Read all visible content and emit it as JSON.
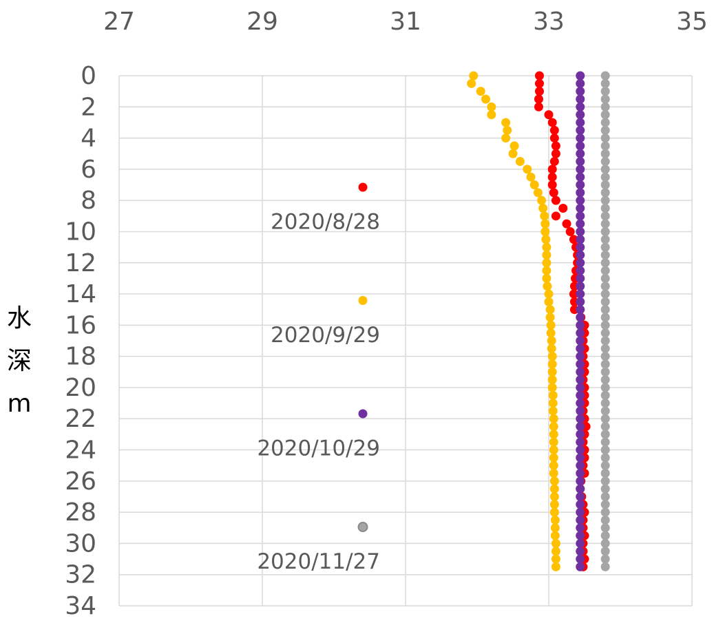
{
  "chart_data": {
    "type": "scatter",
    "y_label": "水深m",
    "xlim": [
      27,
      35
    ],
    "xticks": [
      27,
      29,
      31,
      33,
      35
    ],
    "ylim": [
      0,
      34
    ],
    "yticks": [
      0,
      2,
      4,
      6,
      8,
      10,
      12,
      14,
      16,
      18,
      20,
      22,
      24,
      26,
      28,
      30,
      32,
      34
    ],
    "y_inverted": true,
    "x_axis_position": "top",
    "grid": true,
    "series": [
      {
        "name": "2020/8/28",
        "color": "#ff0000",
        "x": [
          32.87,
          32.87,
          32.87,
          32.86,
          32.86,
          33.0,
          33.05,
          33.08,
          33.08,
          33.1,
          33.1,
          33.08,
          33.05,
          33.05,
          33.05,
          33.07,
          33.1,
          33.2,
          33.1,
          33.25,
          33.3,
          33.35,
          33.38,
          33.4,
          33.4,
          33.38,
          33.37,
          33.36,
          33.35,
          33.36,
          33.36,
          33.45,
          33.5,
          33.5,
          33.48,
          33.5,
          33.48,
          33.5,
          33.5,
          33.48,
          33.5,
          33.5,
          33.5,
          33.48,
          33.5,
          33.52,
          33.5,
          33.48,
          33.5,
          33.5,
          33.48,
          33.5,
          33.45,
          33.44,
          33.46,
          33.48,
          33.5,
          33.48,
          33.48,
          33.5,
          33.48,
          33.48,
          33.5,
          33.48
        ],
        "values": [
          0,
          0.5,
          1,
          1.5,
          2,
          2.5,
          3,
          3.5,
          4,
          4.5,
          5,
          5.5,
          6,
          6.5,
          7,
          7.5,
          8,
          8.5,
          9,
          9.5,
          10,
          10.5,
          11,
          11.5,
          12,
          12.5,
          13,
          13.5,
          14,
          14.5,
          15,
          15.5,
          16,
          16.5,
          17,
          17.5,
          18,
          18.5,
          19,
          19.5,
          20,
          20.5,
          21,
          21.5,
          22,
          22.5,
          23,
          23.5,
          24,
          24.5,
          25,
          25.5,
          26,
          26.5,
          27,
          27.5,
          28,
          28.5,
          29,
          29.5,
          30,
          30.5,
          31,
          31.5
        ]
      },
      {
        "name": "2020/9/29",
        "color": "#ffc000",
        "x": [
          31.95,
          31.92,
          32.05,
          32.12,
          32.2,
          32.2,
          32.4,
          32.42,
          32.4,
          32.52,
          32.5,
          32.6,
          32.7,
          32.75,
          32.8,
          32.85,
          32.9,
          32.92,
          32.94,
          32.95,
          32.95,
          32.96,
          32.97,
          32.97,
          32.97,
          32.97,
          32.97,
          32.98,
          33.0,
          33.0,
          33.02,
          33.02,
          33.03,
          33.03,
          33.04,
          33.04,
          33.05,
          33.05,
          33.05,
          33.05,
          33.05,
          33.06,
          33.06,
          33.06,
          33.07,
          33.07,
          33.07,
          33.07,
          33.07,
          33.07,
          33.07,
          33.07,
          33.08,
          33.08,
          33.08,
          33.08,
          33.08,
          33.09,
          33.09,
          33.09,
          33.1,
          33.1,
          33.1,
          33.1
        ],
        "values": [
          0,
          0.5,
          1,
          1.5,
          2,
          2.5,
          3,
          3.5,
          4,
          4.5,
          5,
          5.5,
          6,
          6.5,
          7,
          7.5,
          8,
          8.5,
          9,
          9.5,
          10,
          10.5,
          11,
          11.5,
          12,
          12.5,
          13,
          13.5,
          14,
          14.5,
          15,
          15.5,
          16,
          16.5,
          17,
          17.5,
          18,
          18.5,
          19,
          19.5,
          20,
          20.5,
          21,
          21.5,
          22,
          22.5,
          23,
          23.5,
          24,
          24.5,
          25,
          25.5,
          26,
          26.5,
          27,
          27.5,
          28,
          28.5,
          29,
          29.5,
          30,
          30.5,
          31,
          31.5
        ]
      },
      {
        "name": "2020/10/29",
        "color": "#7030a0",
        "x": [
          33.44,
          33.44,
          33.44,
          33.44,
          33.44,
          33.44,
          33.44,
          33.44,
          33.44,
          33.44,
          33.44,
          33.44,
          33.44,
          33.44,
          33.44,
          33.44,
          33.44,
          33.44,
          33.44,
          33.44,
          33.44,
          33.44,
          33.44,
          33.44,
          33.44,
          33.44,
          33.44,
          33.44,
          33.44,
          33.44,
          33.44,
          33.44,
          33.44,
          33.44,
          33.44,
          33.44,
          33.44,
          33.44,
          33.44,
          33.44,
          33.44,
          33.44,
          33.44,
          33.44,
          33.44,
          33.44,
          33.44,
          33.44,
          33.44,
          33.44,
          33.44,
          33.44,
          33.44,
          33.44,
          33.44,
          33.44,
          33.44,
          33.44,
          33.44,
          33.44,
          33.44,
          33.44,
          33.44,
          33.44
        ],
        "values": [
          0,
          0.5,
          1,
          1.5,
          2,
          2.5,
          3,
          3.5,
          4,
          4.5,
          5,
          5.5,
          6,
          6.5,
          7,
          7.5,
          8,
          8.5,
          9,
          9.5,
          10,
          10.5,
          11,
          11.5,
          12,
          12.5,
          13,
          13.5,
          14,
          14.5,
          15,
          15.5,
          16,
          16.5,
          17,
          17.5,
          18,
          18.5,
          19,
          19.5,
          20,
          20.5,
          21,
          21.5,
          22,
          22.5,
          23,
          23.5,
          24,
          24.5,
          25,
          25.5,
          26,
          26.5,
          27,
          27.5,
          28,
          28.5,
          29,
          29.5,
          30,
          30.5,
          31,
          31.5
        ]
      },
      {
        "name": "2020/11/27",
        "color": "#a5a5a5",
        "x": [
          33.79,
          33.79,
          33.79,
          33.79,
          33.79,
          33.79,
          33.79,
          33.79,
          33.79,
          33.79,
          33.79,
          33.79,
          33.79,
          33.79,
          33.79,
          33.79,
          33.79,
          33.79,
          33.79,
          33.79,
          33.79,
          33.79,
          33.79,
          33.79,
          33.79,
          33.79,
          33.79,
          33.79,
          33.79,
          33.79,
          33.79,
          33.79,
          33.79,
          33.79,
          33.79,
          33.79,
          33.79,
          33.79,
          33.79,
          33.79,
          33.79,
          33.79,
          33.79,
          33.79,
          33.79,
          33.79,
          33.79,
          33.79,
          33.79,
          33.79,
          33.79,
          33.79,
          33.79,
          33.79,
          33.79,
          33.79,
          33.79,
          33.79,
          33.79,
          33.79,
          33.79,
          33.79,
          33.79,
          33.79
        ],
        "values": [
          0,
          0.5,
          1,
          1.5,
          2,
          2.5,
          3,
          3.5,
          4,
          4.5,
          5,
          5.5,
          6,
          6.5,
          7,
          7.5,
          8,
          8.5,
          9,
          9.5,
          10,
          10.5,
          11,
          11.5,
          12,
          12.5,
          13,
          13.5,
          14,
          14.5,
          15,
          15.5,
          16,
          16.5,
          17,
          17.5,
          18,
          18.5,
          19,
          19.5,
          20,
          20.5,
          21,
          21.5,
          22,
          22.5,
          23,
          23.5,
          24,
          24.5,
          25,
          25.5,
          26,
          26.5,
          27,
          27.5,
          28,
          28.5,
          29,
          29.5,
          30,
          30.5,
          31,
          31.5
        ]
      }
    ]
  }
}
